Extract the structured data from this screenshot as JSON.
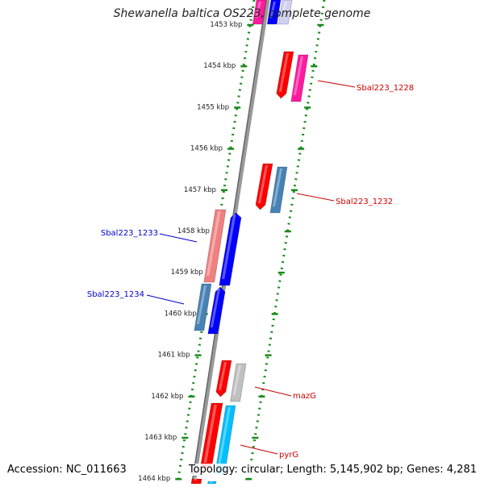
{
  "title": "Shewanella baltica OS223, complete genome",
  "accession_label": "Accession: NC_011663",
  "summary_label": "Topology: circular; Length: 5,145,902 bp; Genes: 4,281",
  "ticks": [
    "1453 kbp",
    "1454 kbp",
    "1455 kbp",
    "1456 kbp",
    "1457 kbp",
    "1458 kbp",
    "1459 kbp",
    "1460 kbp",
    "1461 kbp",
    "1462 kbp",
    "1463 kbp",
    "1464 kbp"
  ],
  "gene_labels": {
    "sbal223_1228": "Sbal223_1228",
    "sbal223_1232": "Sbal223_1232",
    "sbal223_1233": "Sbal223_1233",
    "sbal223_1234": "Sbal223_1234",
    "mazg": "mazG",
    "pyrg": "pyrG"
  },
  "colors": {
    "backbone": "#888888",
    "tick_dots": "#1a8a1a",
    "forward_label": "#cc0000",
    "reverse_label": "#0000cc",
    "cds_red": "#ff0000",
    "gene_pink": "#ff1aa0",
    "gene_steel": "#4682b4",
    "gene_salmon": "#f08080",
    "gene_blue": "#0000ff",
    "gene_grey": "#c0c0c0",
    "gene_cyan": "#00bfff"
  }
}
